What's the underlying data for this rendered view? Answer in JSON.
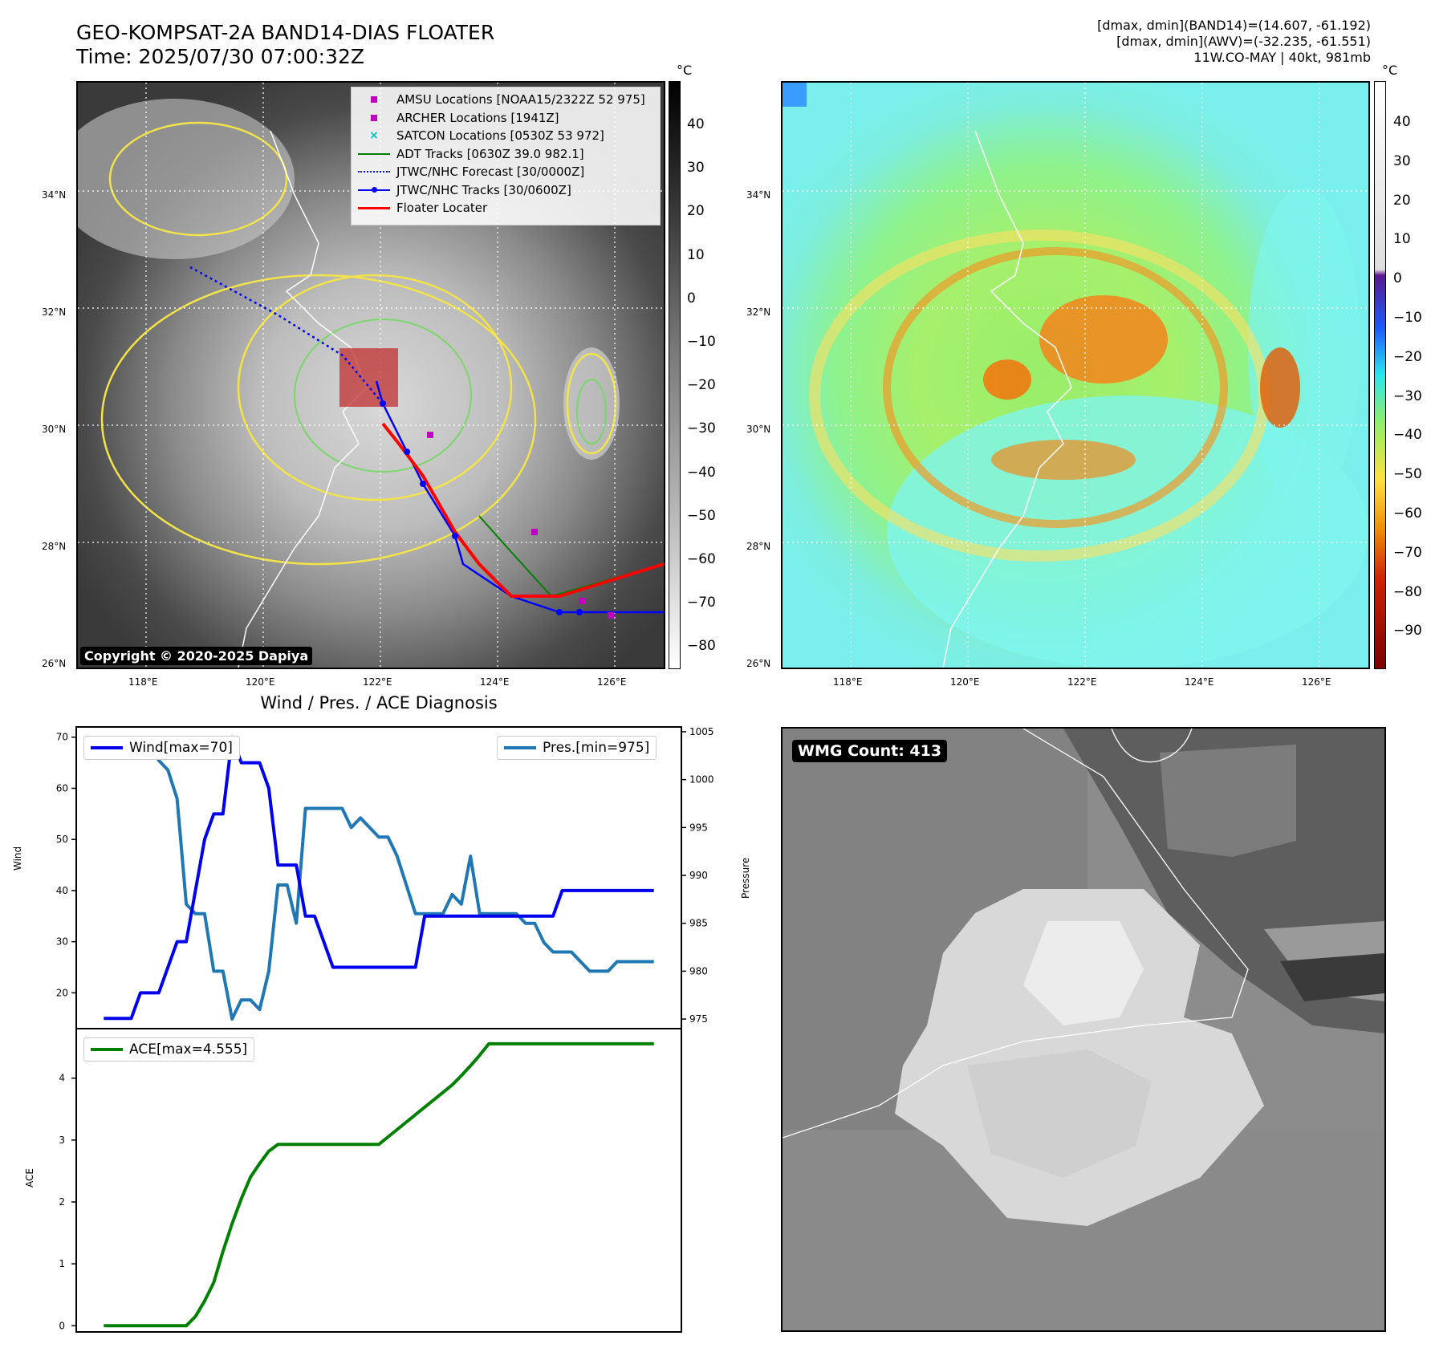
{
  "header": {
    "title_line1": "GEO-KOMPSAT-2A BAND14-DIAS FLOATER",
    "title_line2": "Time: 2025/07/30 07:00:32Z",
    "right_line1": "[dmax, dmin](BAND14)=(14.607, -61.192)",
    "right_line2": "[dmax, dmin](AWV)=(-32.235, -61.551)",
    "right_line3": "11W.CO-MAY | 40kt, 981mb"
  },
  "map": {
    "lon_ticks": [
      "118°E",
      "120°E",
      "122°E",
      "124°E",
      "126°E"
    ],
    "lat_ticks": [
      "34°N",
      "32°N",
      "30°N",
      "28°N",
      "26°N"
    ],
    "colorbar_unit": "°C",
    "colorbar1_ticks": [
      "40",
      "30",
      "20",
      "10",
      "0",
      "−10",
      "−20",
      "−30",
      "−40",
      "−50",
      "−60",
      "−70",
      "−80"
    ],
    "colorbar2_ticks": [
      "40",
      "30",
      "20",
      "10",
      "0",
      "−10",
      "−20",
      "−30",
      "−40",
      "−50",
      "−60",
      "−70",
      "−80",
      "−90"
    ],
    "copyright": "Copyright © 2020-2025 Dapiya",
    "legend": [
      {
        "label": "AMSU Locations [NOAA15/2322Z 52 975]",
        "color": "#bf00bf",
        "symbol": "square"
      },
      {
        "label": "ARCHER Locations [1941Z]",
        "color": "#bf00bf",
        "symbol": "square"
      },
      {
        "label": "SATCON Locations [0530Z 53 972]",
        "color": "#00bfbf",
        "symbol": "cross"
      },
      {
        "label": "ADT Tracks [0630Z 39.0 982.1]",
        "color": "#008000",
        "symbol": "line"
      },
      {
        "label": "JTWC/NHC Forecast [30/0000Z]",
        "color": "#0000ff",
        "symbol": "dotted"
      },
      {
        "label": "JTWC/NHC Tracks [30/0600Z]",
        "color": "#0000ff",
        "symbol": "line-dot"
      },
      {
        "label": "Floater Locater",
        "color": "#ff0000",
        "symbol": "line"
      }
    ]
  },
  "wmg_label": "WMG Count: 413",
  "chart_data": [
    {
      "type": "line",
      "title": "Wind / Pres. / ACE Diagnosis",
      "ylabel_left": "Wind",
      "ylabel_right": "Pressure",
      "x": [
        0,
        1,
        2,
        3,
        4,
        5,
        6,
        7,
        8,
        9,
        10,
        11,
        12,
        13,
        14,
        15,
        16,
        17,
        18,
        19,
        20,
        21,
        22,
        23,
        24,
        25,
        26,
        27,
        28,
        29,
        30,
        31,
        32,
        33,
        34,
        35,
        36,
        37,
        38,
        39,
        40,
        41,
        42,
        43,
        44,
        45,
        46,
        47,
        48,
        49,
        50,
        51,
        52,
        53,
        54,
        55,
        56,
        57,
        58,
        59,
        60
      ],
      "ylim_left": [
        13,
        72
      ],
      "ylim_right": [
        974,
        1005.5
      ],
      "yticks_left": [
        20,
        30,
        40,
        50,
        60,
        70
      ],
      "yticks_right": [
        975,
        980,
        985,
        990,
        995,
        1000,
        1005
      ],
      "series": [
        {
          "name": "Wind[max=70]",
          "axis": "left",
          "color": "#0000ee",
          "values": [
            15,
            15,
            15,
            15,
            20,
            20,
            20,
            25,
            30,
            30,
            40,
            50,
            55,
            55,
            70,
            65,
            65,
            65,
            60,
            45,
            45,
            45,
            35,
            35,
            30,
            25,
            25,
            25,
            25,
            25,
            25,
            25,
            25,
            25,
            25,
            35,
            35,
            35,
            35,
            35,
            35,
            35,
            35,
            35,
            35,
            35,
            35,
            35,
            35,
            35,
            40,
            40,
            40,
            40,
            40,
            40,
            40,
            40,
            40,
            40,
            40
          ]
        },
        {
          "name": "Pres.[min=975]",
          "axis": "right",
          "color": "#1f77b4",
          "values": [
            1004,
            1004,
            1004,
            1004,
            1004,
            1004,
            1002,
            1001,
            998,
            987,
            986,
            986,
            980,
            980,
            975,
            977,
            977,
            976,
            980,
            989,
            989,
            985,
            997,
            997,
            997,
            997,
            997,
            995,
            996,
            995,
            994,
            994,
            992,
            989,
            986,
            986,
            986,
            986,
            988,
            987,
            992,
            986,
            986,
            986,
            986,
            986,
            985,
            985,
            983,
            982,
            982,
            982,
            981,
            980,
            980,
            980,
            981,
            981,
            981,
            981,
            981
          ]
        }
      ]
    },
    {
      "type": "line",
      "title": "",
      "ylabel": "ACE",
      "x": [
        0,
        1,
        2,
        3,
        4,
        5,
        6,
        7,
        8,
        9,
        10,
        11,
        12,
        13,
        14,
        15,
        16,
        17,
        18,
        19,
        20,
        21,
        22,
        23,
        24,
        25,
        26,
        27,
        28,
        29,
        30,
        31,
        32,
        33,
        34,
        35,
        36,
        37,
        38,
        39,
        40,
        41,
        42,
        43,
        44,
        45,
        46,
        47,
        48,
        49,
        50,
        51,
        52,
        53,
        54,
        55,
        56,
        57,
        58,
        59,
        60
      ],
      "ylim": [
        -0.1,
        4.8
      ],
      "yticks": [
        0,
        1,
        2,
        3,
        4
      ],
      "series": [
        {
          "name": "ACE[max=4.555]",
          "color": "#008000",
          "values": [
            0,
            0,
            0,
            0,
            0,
            0,
            0,
            0,
            0,
            0,
            0.15,
            0.4,
            0.7,
            1.2,
            1.65,
            2.05,
            2.4,
            2.62,
            2.82,
            2.93,
            2.93,
            2.93,
            2.93,
            2.93,
            2.93,
            2.93,
            2.93,
            2.93,
            2.93,
            2.93,
            2.93,
            3.05,
            3.17,
            3.29,
            3.41,
            3.53,
            3.65,
            3.77,
            3.89,
            4.04,
            4.2,
            4.37,
            4.555,
            4.555,
            4.555,
            4.555,
            4.555,
            4.555,
            4.555,
            4.555,
            4.555,
            4.555,
            4.555,
            4.555,
            4.555,
            4.555,
            4.555,
            4.555,
            4.555,
            4.555,
            4.555
          ]
        }
      ]
    }
  ]
}
